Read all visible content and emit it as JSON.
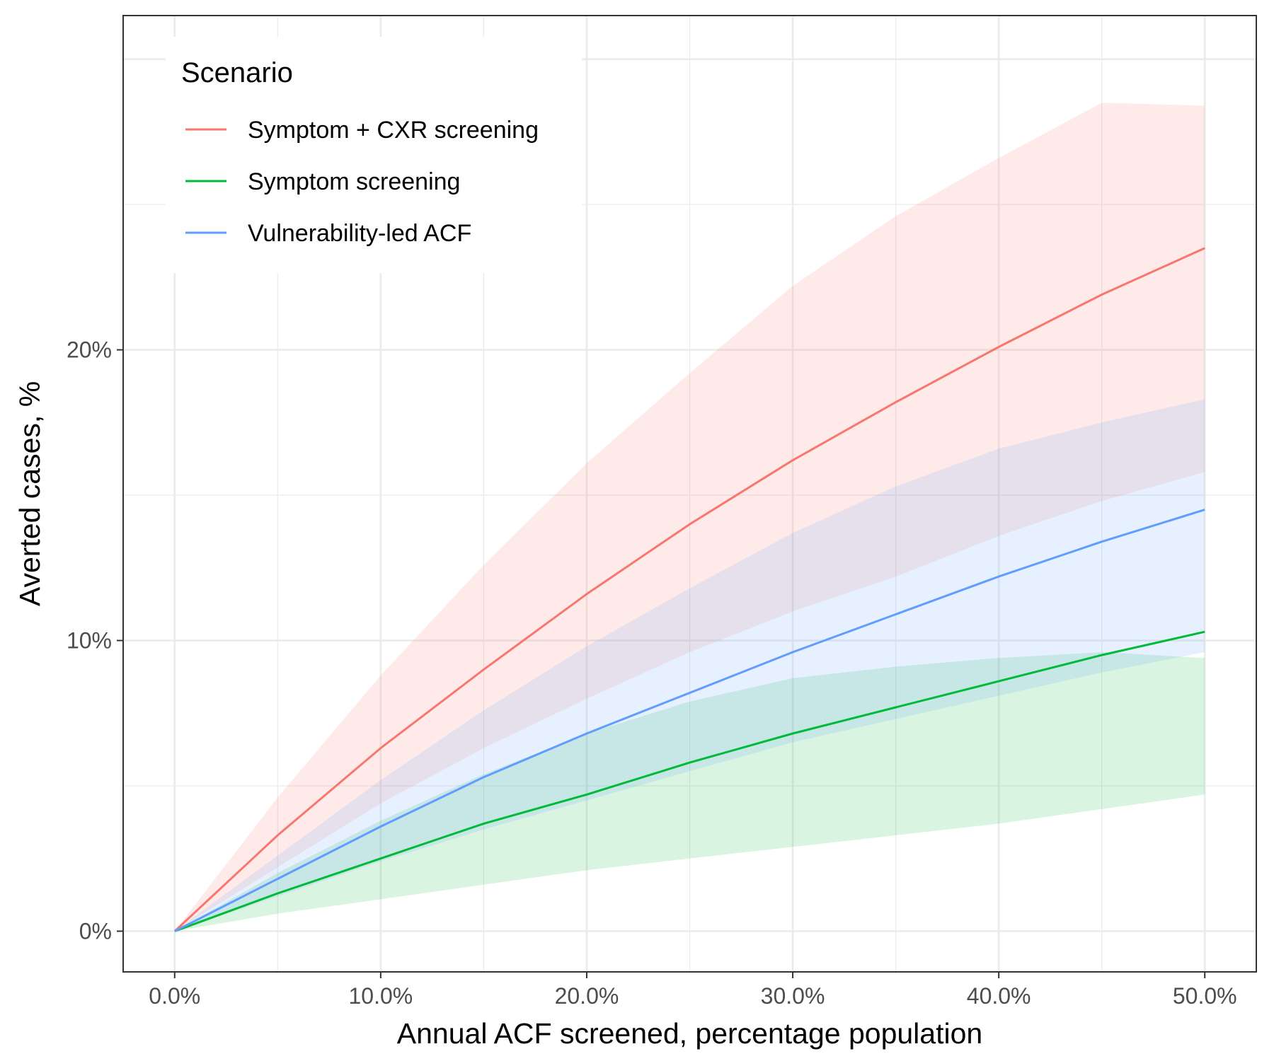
{
  "chart_data": {
    "type": "line",
    "xlabel": "Annual ACF screened, percentage population",
    "ylabel": "Averted cases, %",
    "xlim": [
      -0.025,
      0.525
    ],
    "ylim": [
      -1.4,
      31.5
    ],
    "x_ticks": [
      0,
      0.1,
      0.2,
      0.3,
      0.4,
      0.5
    ],
    "x_tick_labels": [
      "0.0%",
      "10.0%",
      "20.0%",
      "30.0%",
      "40.0%",
      "50.0%"
    ],
    "y_ticks": [
      0,
      10,
      20
    ],
    "y_tick_labels": [
      "0%",
      "10%",
      "20%"
    ],
    "grid": true,
    "legend": {
      "title": "Scenario",
      "placement": "top-left"
    },
    "x": [
      0,
      0.05,
      0.1,
      0.15,
      0.2,
      0.25,
      0.3,
      0.35,
      0.4,
      0.45,
      0.5
    ],
    "series": [
      {
        "name": "Symptom + CXR screening",
        "color": "#F8766D",
        "values": [
          0,
          3.3,
          6.3,
          9.0,
          11.6,
          14.0,
          16.2,
          18.2,
          20.1,
          21.9,
          23.5
        ],
        "lower": [
          0,
          2.2,
          4.4,
          6.3,
          8.0,
          9.6,
          11.0,
          12.2,
          13.6,
          14.8,
          15.8
        ],
        "upper": [
          0,
          4.6,
          8.8,
          12.6,
          16.1,
          19.2,
          22.2,
          24.6,
          26.6,
          28.5,
          28.4
        ]
      },
      {
        "name": "Symptom screening",
        "color": "#00BA38",
        "values": [
          0,
          1.3,
          2.5,
          3.7,
          4.7,
          5.8,
          6.8,
          7.7,
          8.6,
          9.5,
          10.3
        ],
        "lower": [
          0,
          0.6,
          1.1,
          1.6,
          2.1,
          2.5,
          2.9,
          3.3,
          3.7,
          4.2,
          4.7
        ],
        "upper": [
          0,
          2.0,
          3.8,
          5.4,
          6.8,
          7.9,
          8.7,
          9.1,
          9.4,
          9.6,
          9.4
        ]
      },
      {
        "name": "Vulnerability-led ACF",
        "color": "#619CFF",
        "values": [
          0,
          1.8,
          3.6,
          5.3,
          6.8,
          8.2,
          9.6,
          10.9,
          12.2,
          13.4,
          14.5
        ],
        "lower": [
          0,
          1.2,
          2.4,
          3.5,
          4.5,
          5.5,
          6.5,
          7.3,
          8.1,
          8.9,
          9.6
        ],
        "upper": [
          0,
          2.6,
          5.2,
          7.6,
          9.8,
          11.8,
          13.7,
          15.3,
          16.6,
          17.5,
          18.3
        ]
      }
    ]
  }
}
